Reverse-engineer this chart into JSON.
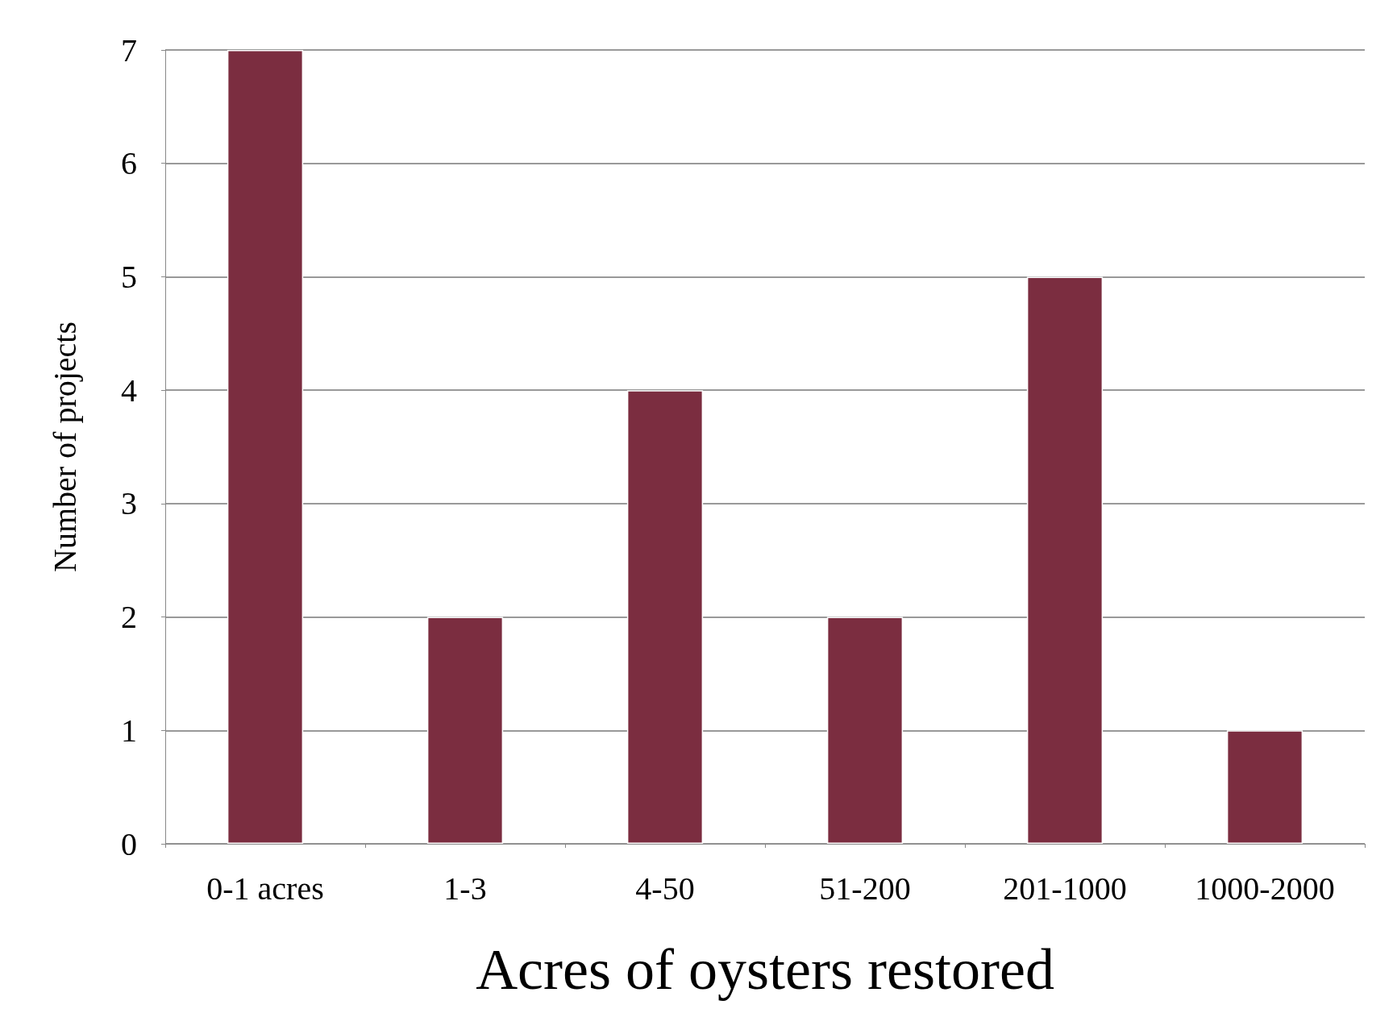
{
  "chart_data": {
    "type": "bar",
    "categories": [
      "0-1 acres",
      "1-3",
      "4-50",
      "51-200",
      "201-1000",
      "1000-2000"
    ],
    "values": [
      7,
      2,
      4,
      2,
      5,
      1
    ],
    "color": "#7b2d40",
    "xlabel": "Acres of oysters restored",
    "ylabel": "Number of projects",
    "ylim": [
      0,
      7
    ],
    "yticks": [
      0,
      1,
      2,
      3,
      4,
      5,
      6,
      7
    ],
    "grid": "y"
  }
}
